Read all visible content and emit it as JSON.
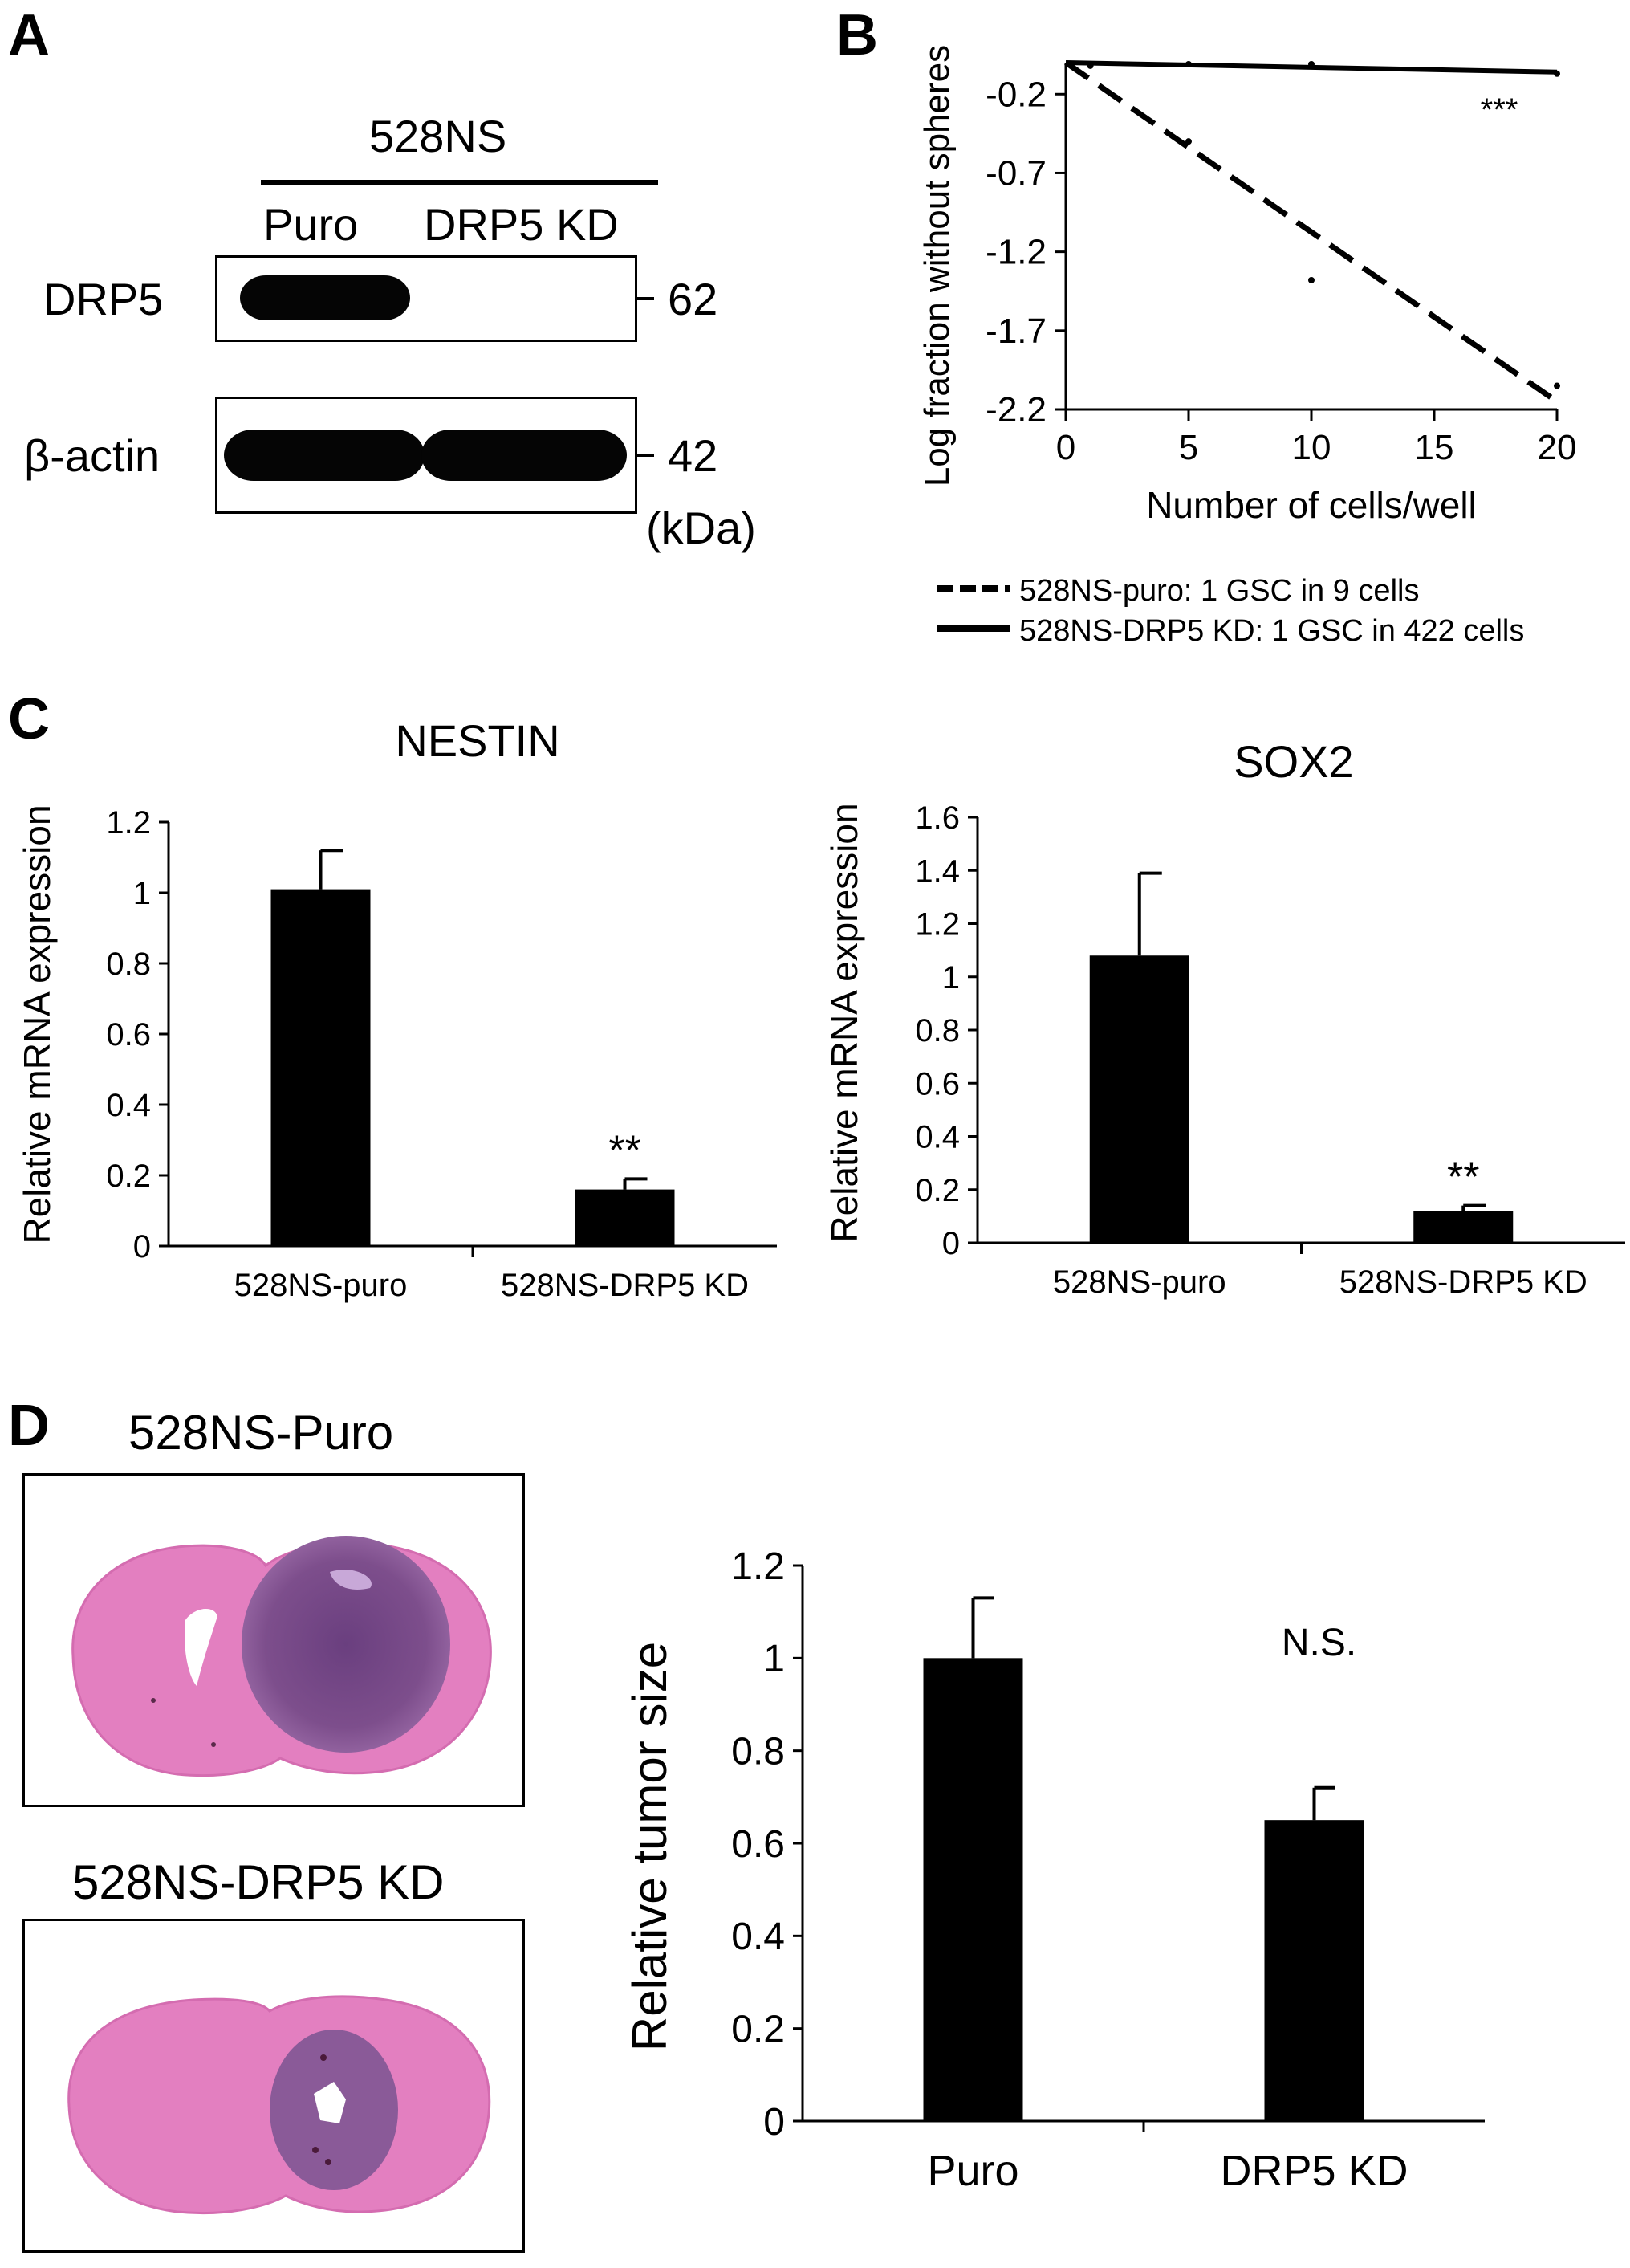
{
  "panels": {
    "a": "A",
    "b": "B",
    "c": "C",
    "d": "D"
  },
  "western_blot": {
    "cell_line": "528NS",
    "lanes": [
      "Puro",
      "DRP5 KD"
    ],
    "rows": [
      {
        "protein": "DRP5",
        "marker": "62"
      },
      {
        "protein": "β-actin",
        "marker": "42"
      }
    ],
    "unit": "(kDa)"
  },
  "histology": {
    "puro_title": "528NS-Puro",
    "kd_title": "528NS-DRP5 KD"
  },
  "chart_data": [
    {
      "id": "limiting-dilution",
      "type": "line",
      "xlabel": "Number of cells/well",
      "ylabel": "Log fraction without spheres",
      "xlim": [
        0,
        20
      ],
      "ylim": [
        -2.2,
        0
      ],
      "xticks": [
        0,
        5,
        10,
        15,
        20
      ],
      "yticks": [
        -0.2,
        -0.7,
        -1.2,
        -1.7,
        -2.2
      ],
      "annotation": "***",
      "series": [
        {
          "name": "528NS-puro: 1 GSC in 9 cells",
          "style": "dashed",
          "x": [
            0,
            20
          ],
          "y": [
            0,
            -2.15
          ]
        },
        {
          "name": "528NS-DRP5 KD: 1 GSC in 422 cells",
          "style": "solid",
          "x": [
            0,
            20
          ],
          "y": [
            0,
            -0.06
          ]
        }
      ],
      "points": [
        {
          "x": 1,
          "y": -0.02
        },
        {
          "x": 5,
          "y": -0.01
        },
        {
          "x": 5,
          "y": -0.5
        },
        {
          "x": 10,
          "y": -0.01
        },
        {
          "x": 10,
          "y": -1.38
        },
        {
          "x": 20,
          "y": -0.07
        },
        {
          "x": 20,
          "y": -2.05
        }
      ]
    },
    {
      "id": "nestin",
      "type": "bar",
      "title": "NESTIN",
      "ylabel": "Relative mRNA expression",
      "categories": [
        "528NS-puro",
        "528NS-DRP5 KD"
      ],
      "values": [
        1.01,
        0.16
      ],
      "errors": [
        0.11,
        0.03
      ],
      "ylim": [
        0,
        1.2
      ],
      "yticks": [
        0,
        0.2,
        0.4,
        0.6,
        0.8,
        1,
        1.2
      ],
      "significance": [
        "",
        "**"
      ]
    },
    {
      "id": "sox2",
      "type": "bar",
      "title": "SOX2",
      "ylabel": "Relative mRNA expression",
      "categories": [
        "528NS-puro",
        "528NS-DRP5 KD"
      ],
      "values": [
        1.08,
        0.12
      ],
      "errors": [
        0.31,
        0.02
      ],
      "ylim": [
        0,
        1.6
      ],
      "yticks": [
        0,
        0.2,
        0.4,
        0.6,
        0.8,
        1,
        1.2,
        1.4,
        1.6
      ],
      "significance": [
        "",
        "**"
      ]
    },
    {
      "id": "tumor-size",
      "type": "bar",
      "ylabel": "Relative tumor size",
      "categories": [
        "Puro",
        "DRP5 KD"
      ],
      "values": [
        1.0,
        0.65
      ],
      "errors": [
        0.13,
        0.07
      ],
      "ylim": [
        0,
        1.2
      ],
      "yticks": [
        0,
        0.2,
        0.4,
        0.6,
        0.8,
        1,
        1.2
      ],
      "significance": [
        "",
        "N.S."
      ]
    }
  ]
}
